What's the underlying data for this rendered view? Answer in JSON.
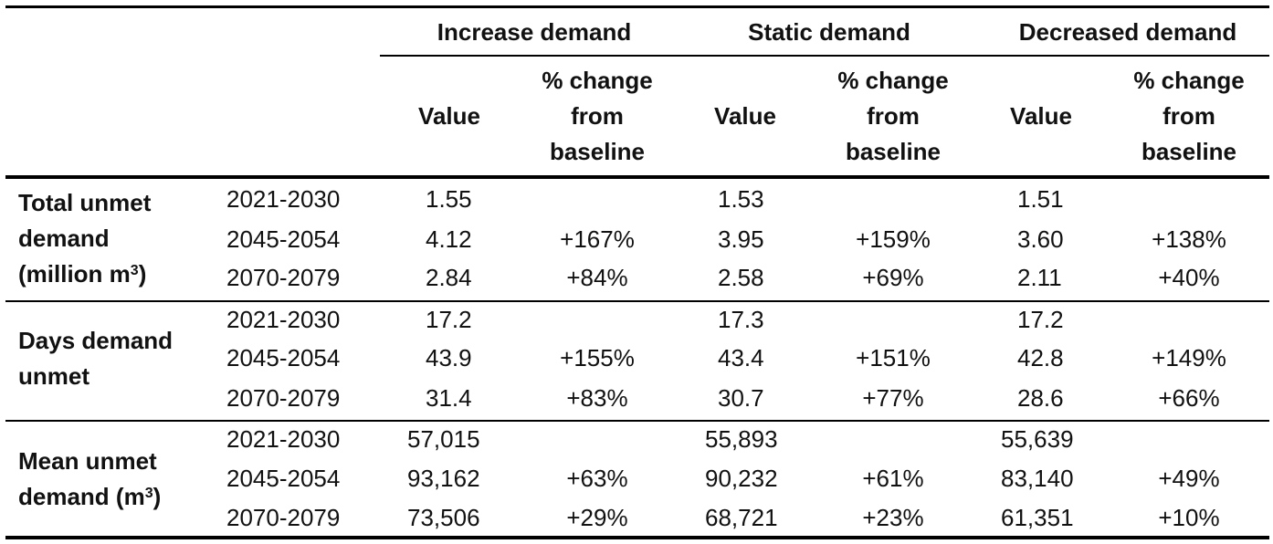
{
  "header": {
    "groups": [
      "Increase demand",
      "Static demand",
      "Decreased demand"
    ],
    "value_label": "Value",
    "pct_label_lines": [
      "% change",
      "from",
      "baseline"
    ]
  },
  "sections": [
    {
      "label_lines": [
        "Total unmet",
        "demand",
        "(million m",
        "3",
        ")"
      ],
      "rows": [
        {
          "period": "2021-2030",
          "cells": [
            "1.55",
            "",
            "1.53",
            "",
            "1.51",
            ""
          ]
        },
        {
          "period": "2045-2054",
          "cells": [
            "4.12",
            "+167%",
            "3.95",
            "+159%",
            "3.60",
            "+138%"
          ]
        },
        {
          "period": "2070-2079",
          "cells": [
            "2.84",
            "+84%",
            "2.58",
            "+69%",
            "2.11",
            "+40%"
          ]
        }
      ]
    },
    {
      "label_lines": [
        "Days demand",
        "unmet"
      ],
      "rows": [
        {
          "period": "2021-2030",
          "cells": [
            "17.2",
            "",
            "17.3",
            "",
            "17.2",
            ""
          ]
        },
        {
          "period": "2045-2054",
          "cells": [
            "43.9",
            "+155%",
            "43.4",
            "+151%",
            "42.8",
            "+149%"
          ]
        },
        {
          "period": "2070-2079",
          "cells": [
            "31.4",
            "+83%",
            "30.7",
            "+77%",
            "28.6",
            "+66%"
          ]
        }
      ]
    },
    {
      "label_lines": [
        "Mean unmet",
        "demand (m",
        "3",
        ")"
      ],
      "rows": [
        {
          "period": "2021-2030",
          "cells": [
            "57,015",
            "",
            "55,893",
            "",
            "55,639",
            ""
          ]
        },
        {
          "period": "2045-2054",
          "cells": [
            "93,162",
            "+63%",
            "90,232",
            "+61%",
            "83,140",
            "+49%"
          ]
        },
        {
          "period": "2070-2079",
          "cells": [
            "73,506",
            "+29%",
            "68,721",
            "+23%",
            "61,351",
            "+10%"
          ]
        }
      ]
    }
  ]
}
